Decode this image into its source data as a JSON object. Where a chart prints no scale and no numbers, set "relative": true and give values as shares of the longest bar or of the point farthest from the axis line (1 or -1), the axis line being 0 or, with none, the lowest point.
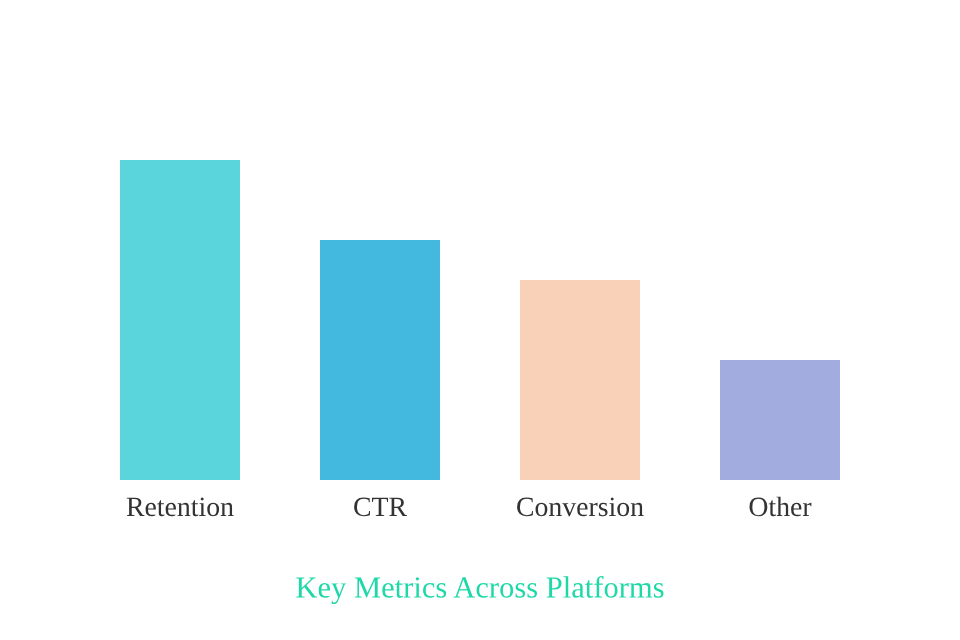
{
  "chart_data": {
    "type": "bar",
    "title": "Key Metrics Across Platforms",
    "relative": true,
    "categories": [
      "Retention",
      "CTR",
      "Conversion",
      "Other"
    ],
    "values": [
      1,
      0.75,
      0.625,
      0.375
    ],
    "colors": [
      "#59d5db",
      "#44b9e0",
      "#f9d0b8",
      "#a3acdf"
    ],
    "grid": false,
    "legend": false
  }
}
